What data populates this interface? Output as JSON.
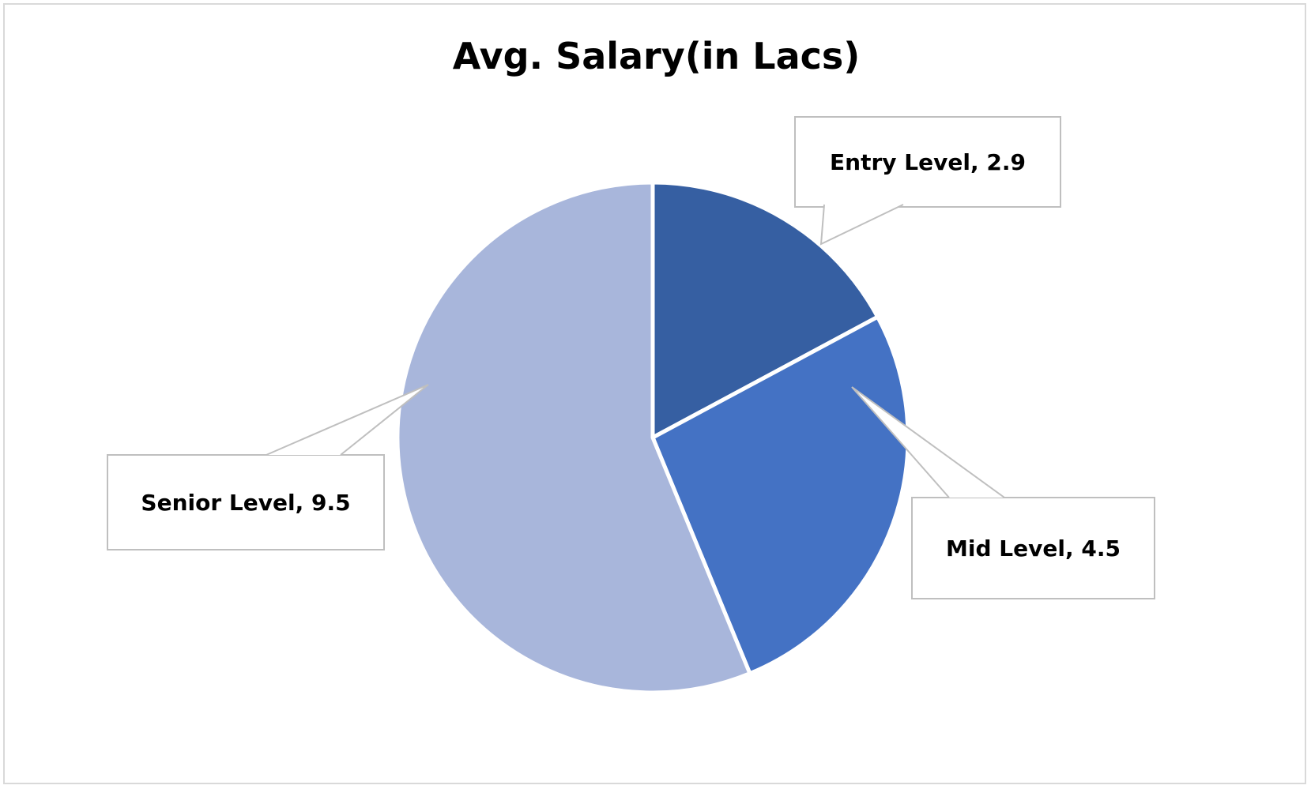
{
  "chart_data": {
    "type": "pie",
    "title": "Avg. Salary(in Lacs)",
    "categories": [
      "Entry Level",
      "Mid Level",
      "Senior Level"
    ],
    "values": [
      2.9,
      4.5,
      9.5
    ],
    "data_labels": [
      "Entry Level, 2.9",
      "Mid Level, 4.5",
      "Senior Level, 9.5"
    ],
    "colors": [
      "#365fa2",
      "#4472c4",
      "#a8b6db"
    ],
    "start_angle": "12 o'clock, clockwise",
    "legend": "none"
  }
}
